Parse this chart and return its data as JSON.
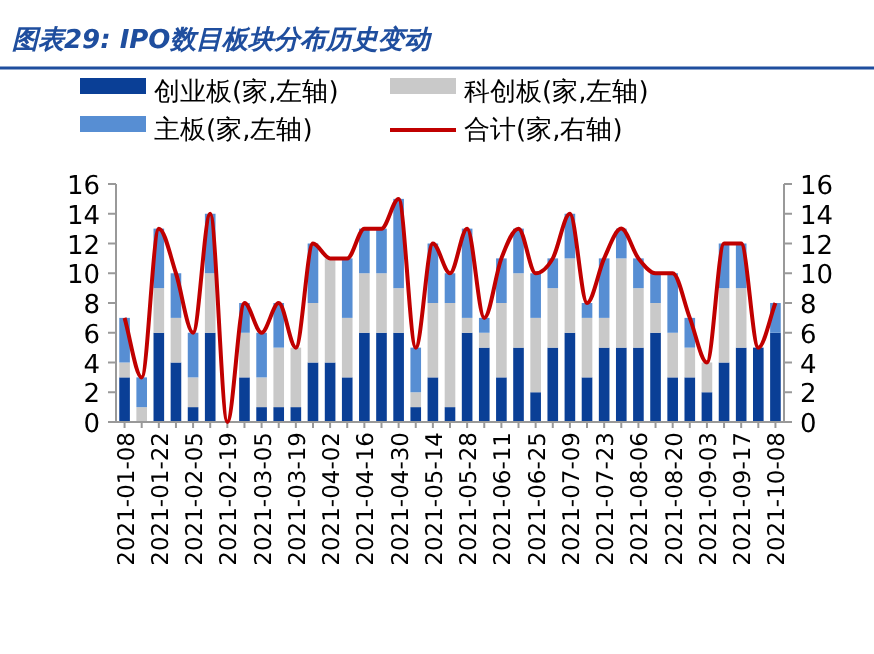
{
  "chart_data": {
    "type": "bar",
    "stacked": true,
    "title": "图表29: IPO数目板块分布历史变动",
    "categories": [
      "2021-01-08",
      null,
      "2021-01-22",
      null,
      "2021-02-05",
      null,
      "2021-02-19",
      null,
      "2021-03-05",
      null,
      "2021-03-19",
      null,
      "2021-04-02",
      null,
      "2021-04-16",
      null,
      "2021-04-30",
      null,
      "2021-05-14",
      null,
      "2021-05-28",
      null,
      "2021-06-11",
      null,
      "2021-06-25",
      null,
      "2021-07-09",
      null,
      "2021-07-23",
      null,
      "2021-08-06",
      null,
      "2021-08-20",
      null,
      "2021-09-03",
      null,
      "2021-09-17",
      null,
      "2021-10-08"
    ],
    "series": [
      {
        "name": "创业板(家,左轴)",
        "color": "#0a3f96",
        "values": [
          3,
          0,
          6,
          4,
          1,
          6,
          0,
          3,
          1,
          1,
          1,
          4,
          4,
          3,
          6,
          6,
          6,
          1,
          3,
          1,
          6,
          5,
          3,
          5,
          2,
          5,
          6,
          3,
          5,
          5,
          5,
          6,
          3,
          3,
          2,
          4,
          5,
          5,
          6
        ]
      },
      {
        "name": "科创板(家,左轴)",
        "color": "#c9c9c9",
        "values": [
          1,
          1,
          3,
          3,
          2,
          4,
          0,
          3,
          2,
          4,
          4,
          4,
          7,
          4,
          4,
          4,
          3,
          1,
          5,
          7,
          1,
          1,
          5,
          5,
          5,
          4,
          5,
          4,
          2,
          6,
          4,
          2,
          3,
          2,
          2,
          5,
          4,
          0,
          0
        ]
      },
      {
        "name": "主板(家,左轴)",
        "color": "#578ed3",
        "values": [
          3,
          2,
          4,
          3,
          3,
          4,
          0,
          2,
          3,
          3,
          0,
          4,
          0,
          4,
          3,
          3,
          6,
          3,
          4,
          2,
          6,
          1,
          3,
          3,
          3,
          2,
          3,
          1,
          4,
          2,
          2,
          2,
          4,
          2,
          0,
          3,
          3,
          0,
          2
        ]
      },
      {
        "name": "合计(家,右轴)",
        "type": "line",
        "axis": "y2",
        "color": "#c00000",
        "values": [
          7,
          3,
          13,
          10,
          6,
          14,
          0,
          8,
          6,
          8,
          5,
          12,
          11,
          11,
          13,
          13,
          15,
          5,
          12,
          10,
          13,
          7,
          11,
          13,
          10,
          11,
          14,
          8,
          11,
          13,
          11,
          10,
          10,
          7,
          4,
          12,
          12,
          5,
          8
        ]
      }
    ],
    "ylim": [
      0,
      16
    ],
    "yticks": [
      0,
      2,
      4,
      6,
      8,
      10,
      12,
      14,
      16
    ],
    "y2lim": [
      0,
      16
    ],
    "y2ticks": [
      0,
      2,
      4,
      6,
      8,
      10,
      12,
      14,
      16
    ],
    "legend": "top"
  }
}
